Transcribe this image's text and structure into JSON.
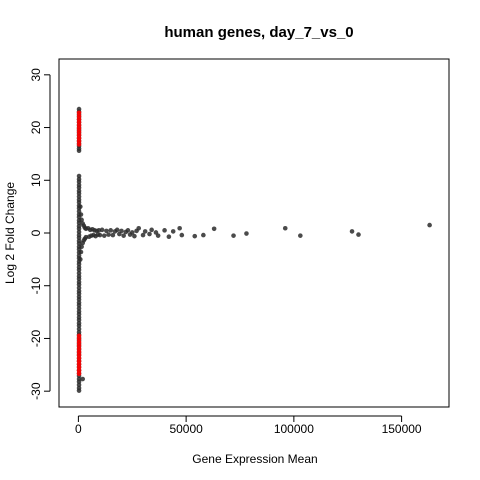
{
  "chart_data": {
    "type": "scatter",
    "title": "human genes, day_7_vs_0",
    "xlabel": "Gene Expression Mean",
    "ylabel": "Log 2 Fold Change",
    "xlim": [
      -9000,
      172000
    ],
    "ylim": [
      -33,
      33
    ],
    "x_ticks": [
      0,
      50000,
      100000,
      150000
    ],
    "x_tick_labels": [
      "0",
      "50000",
      "100000",
      "150000"
    ],
    "y_ticks": [
      -30,
      -20,
      -10,
      0,
      10,
      20,
      30
    ],
    "y_tick_labels": [
      "-30",
      "-20",
      "-10",
      "0",
      "10",
      "20",
      "30"
    ],
    "grid": false,
    "colors": {
      "non_significant": "#2b2b2b",
      "significant": "#ff0000"
    },
    "series": [
      {
        "points": [
          [
            300,
            10.8
          ],
          [
            300,
            10.2
          ],
          [
            300,
            9.7
          ],
          [
            300,
            9.1
          ],
          [
            300,
            8.6
          ],
          [
            300,
            8.0
          ],
          [
            300,
            7.5
          ],
          [
            300,
            6.9
          ],
          [
            300,
            6.3
          ],
          [
            300,
            5.8
          ],
          [
            300,
            5.2
          ],
          [
            300,
            4.7
          ],
          [
            300,
            4.1
          ],
          [
            300,
            3.5
          ],
          [
            300,
            3.0
          ],
          [
            300,
            2.4
          ],
          [
            300,
            1.9
          ],
          [
            300,
            1.3
          ],
          [
            300,
            0.8
          ],
          [
            300,
            0.2
          ],
          [
            300,
            -0.4
          ],
          [
            300,
            -0.9
          ],
          [
            300,
            -1.5
          ],
          [
            300,
            -2.0
          ],
          [
            300,
            -2.6
          ],
          [
            300,
            -3.1
          ],
          [
            300,
            -3.7
          ],
          [
            300,
            -4.3
          ],
          [
            300,
            -4.8
          ],
          [
            300,
            -5.4
          ],
          [
            300,
            -5.9
          ],
          [
            300,
            -6.5
          ],
          [
            300,
            -7.0
          ],
          [
            300,
            -7.6
          ],
          [
            300,
            -8.2
          ],
          [
            300,
            -8.7
          ],
          [
            300,
            -9.3
          ],
          [
            300,
            -9.8
          ],
          [
            300,
            -10.4
          ],
          [
            300,
            -11.0
          ],
          [
            300,
            -11.5
          ],
          [
            300,
            -12.1
          ],
          [
            300,
            -12.6
          ],
          [
            300,
            -13.2
          ],
          [
            300,
            -13.7
          ],
          [
            300,
            -14.3
          ],
          [
            300,
            -14.9
          ],
          [
            300,
            -15.4
          ],
          [
            300,
            -16.0
          ],
          [
            300,
            -16.5
          ],
          [
            300,
            -17.1
          ],
          [
            300,
            -17.6
          ],
          [
            300,
            -18.2
          ],
          [
            300,
            -18.8
          ],
          [
            300,
            -19.3
          ],
          [
            300,
            -19.9
          ],
          [
            300,
            -20.4
          ],
          [
            300,
            -21.0
          ],
          [
            300,
            -21.5
          ],
          [
            300,
            -22.1
          ],
          [
            300,
            -22.7
          ],
          [
            300,
            -23.2
          ],
          [
            300,
            -23.8
          ],
          [
            300,
            -24.3
          ],
          [
            300,
            -24.9
          ],
          [
            300,
            -25.4
          ],
          [
            300,
            -26.0
          ],
          [
            300,
            -26.6
          ],
          [
            300,
            -27.1
          ],
          [
            300,
            -27.7
          ],
          [
            300,
            -28.2
          ],
          [
            300,
            -28.8
          ],
          [
            300,
            -29.4
          ],
          [
            300,
            -29.9
          ],
          [
            300,
            23.5
          ],
          [
            300,
            23.0
          ],
          [
            300,
            22.5
          ],
          [
            300,
            22.0
          ],
          [
            300,
            21.5
          ],
          [
            300,
            21.0
          ],
          [
            300,
            20.5
          ],
          [
            300,
            20.0
          ],
          [
            300,
            19.5
          ],
          [
            300,
            19.0
          ],
          [
            300,
            18.5
          ],
          [
            300,
            18.0
          ],
          [
            300,
            17.5
          ],
          [
            300,
            17.0
          ],
          [
            300,
            16.5
          ],
          [
            300,
            16.0
          ],
          [
            300,
            15.6
          ],
          [
            900,
            5.0
          ],
          [
            900,
            -5.0
          ],
          [
            1200,
            3.5
          ],
          [
            1200,
            -3.6
          ],
          [
            1500,
            2.5
          ],
          [
            1500,
            -2.6
          ],
          [
            2000,
            1.8
          ],
          [
            2000,
            -1.9
          ],
          [
            2500,
            1.4
          ],
          [
            2500,
            -1.4
          ],
          [
            3000,
            1.0
          ],
          [
            3000,
            -1.1
          ],
          [
            3500,
            0.8
          ],
          [
            3500,
            -0.8
          ],
          [
            4500,
            0.9
          ],
          [
            5000,
            -0.7
          ],
          [
            5500,
            0.6
          ],
          [
            6000,
            -0.5
          ],
          [
            6500,
            0.7
          ],
          [
            7000,
            -0.4
          ],
          [
            7500,
            0.5
          ],
          [
            8000,
            -0.6
          ],
          [
            8500,
            0.4
          ],
          [
            9000,
            -0.3
          ],
          [
            9500,
            0.5
          ],
          [
            10000,
            -0.4
          ],
          [
            11000,
            0.6
          ],
          [
            12000,
            -0.5
          ],
          [
            13000,
            0.4
          ],
          [
            14000,
            -0.3
          ],
          [
            15000,
            0.5
          ],
          [
            16000,
            -0.4
          ],
          [
            17000,
            0.3
          ],
          [
            18000,
            0.6
          ],
          [
            19000,
            -0.2
          ],
          [
            20000,
            0.4
          ],
          [
            21000,
            -0.5
          ],
          [
            22000,
            0.2
          ],
          [
            23000,
            0.5
          ],
          [
            24000,
            -0.3
          ],
          [
            25000,
            0.1
          ],
          [
            26000,
            -0.6
          ],
          [
            27000,
            0.4
          ],
          [
            28000,
            0.9
          ],
          [
            30000,
            -0.4
          ],
          [
            31000,
            0.3
          ],
          [
            33000,
            -0.2
          ],
          [
            34000,
            0.6
          ],
          [
            36000,
            0.1
          ],
          [
            37000,
            -0.5
          ],
          [
            40000,
            0.5
          ],
          [
            42000,
            -0.7
          ],
          [
            44000,
            0.3
          ],
          [
            47000,
            0.9
          ],
          [
            48000,
            -0.4
          ],
          [
            54000,
            -0.6
          ],
          [
            58000,
            -0.4
          ],
          [
            63000,
            0.8
          ],
          [
            72000,
            -0.5
          ],
          [
            78000,
            -0.1
          ],
          [
            96000,
            0.9
          ],
          [
            103000,
            -0.5
          ],
          [
            127000,
            0.3
          ],
          [
            130000,
            -0.3
          ],
          [
            163000,
            1.5
          ],
          [
            2000,
            -27.7
          ]
        ]
      },
      {
        "points": [
          [
            300,
            22.8
          ],
          [
            300,
            22.2
          ],
          [
            300,
            21.6
          ],
          [
            300,
            21.0
          ],
          [
            300,
            20.4
          ],
          [
            300,
            19.8
          ],
          [
            300,
            19.2
          ],
          [
            300,
            18.6
          ],
          [
            300,
            18.0
          ],
          [
            300,
            17.4
          ],
          [
            300,
            16.8
          ],
          [
            300,
            -19.5
          ],
          [
            300,
            -20.1
          ],
          [
            300,
            -20.7
          ],
          [
            300,
            -21.3
          ],
          [
            300,
            -21.9
          ],
          [
            300,
            -22.5
          ],
          [
            300,
            -23.1
          ],
          [
            300,
            -23.7
          ],
          [
            300,
            -24.3
          ],
          [
            300,
            -24.9
          ],
          [
            300,
            -25.5
          ],
          [
            300,
            -26.1
          ],
          [
            300,
            -26.7
          ]
        ]
      }
    ]
  }
}
